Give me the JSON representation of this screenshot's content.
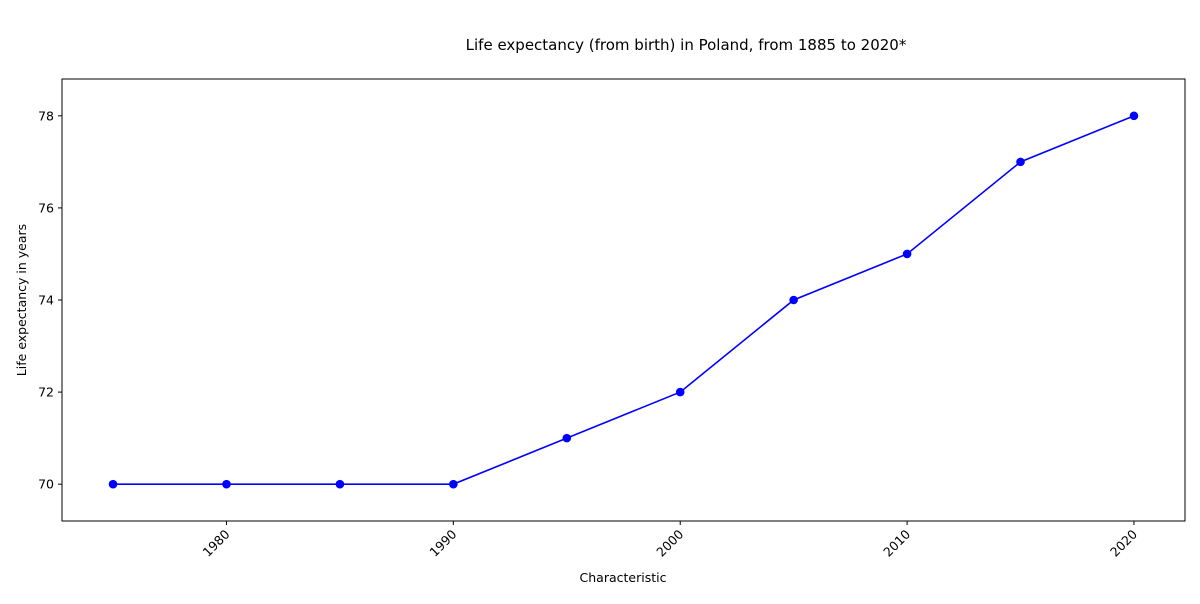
{
  "chart_data": {
    "type": "line",
    "title": "Life expectancy (from birth) in Poland, from 1885 to 2020*",
    "xlabel": "Characteristic",
    "ylabel": "Life expectancy in years",
    "x": [
      1975,
      1980,
      1985,
      1990,
      1995,
      2000,
      2005,
      2010,
      2015,
      2020
    ],
    "series": [
      {
        "values": [
          70,
          70,
          70,
          70,
          71,
          72,
          74,
          75,
          77,
          78
        ],
        "color": "#0000ff"
      }
    ],
    "xlim": [
      1972.75,
      2022.25
    ],
    "ylim": [
      69.2,
      78.8
    ],
    "xticks": [
      "1980",
      "1990",
      "2000",
      "2010",
      "2020"
    ],
    "yticks": [
      "70",
      "72",
      "74",
      "76",
      "78"
    ],
    "grid": false,
    "legend": false
  }
}
